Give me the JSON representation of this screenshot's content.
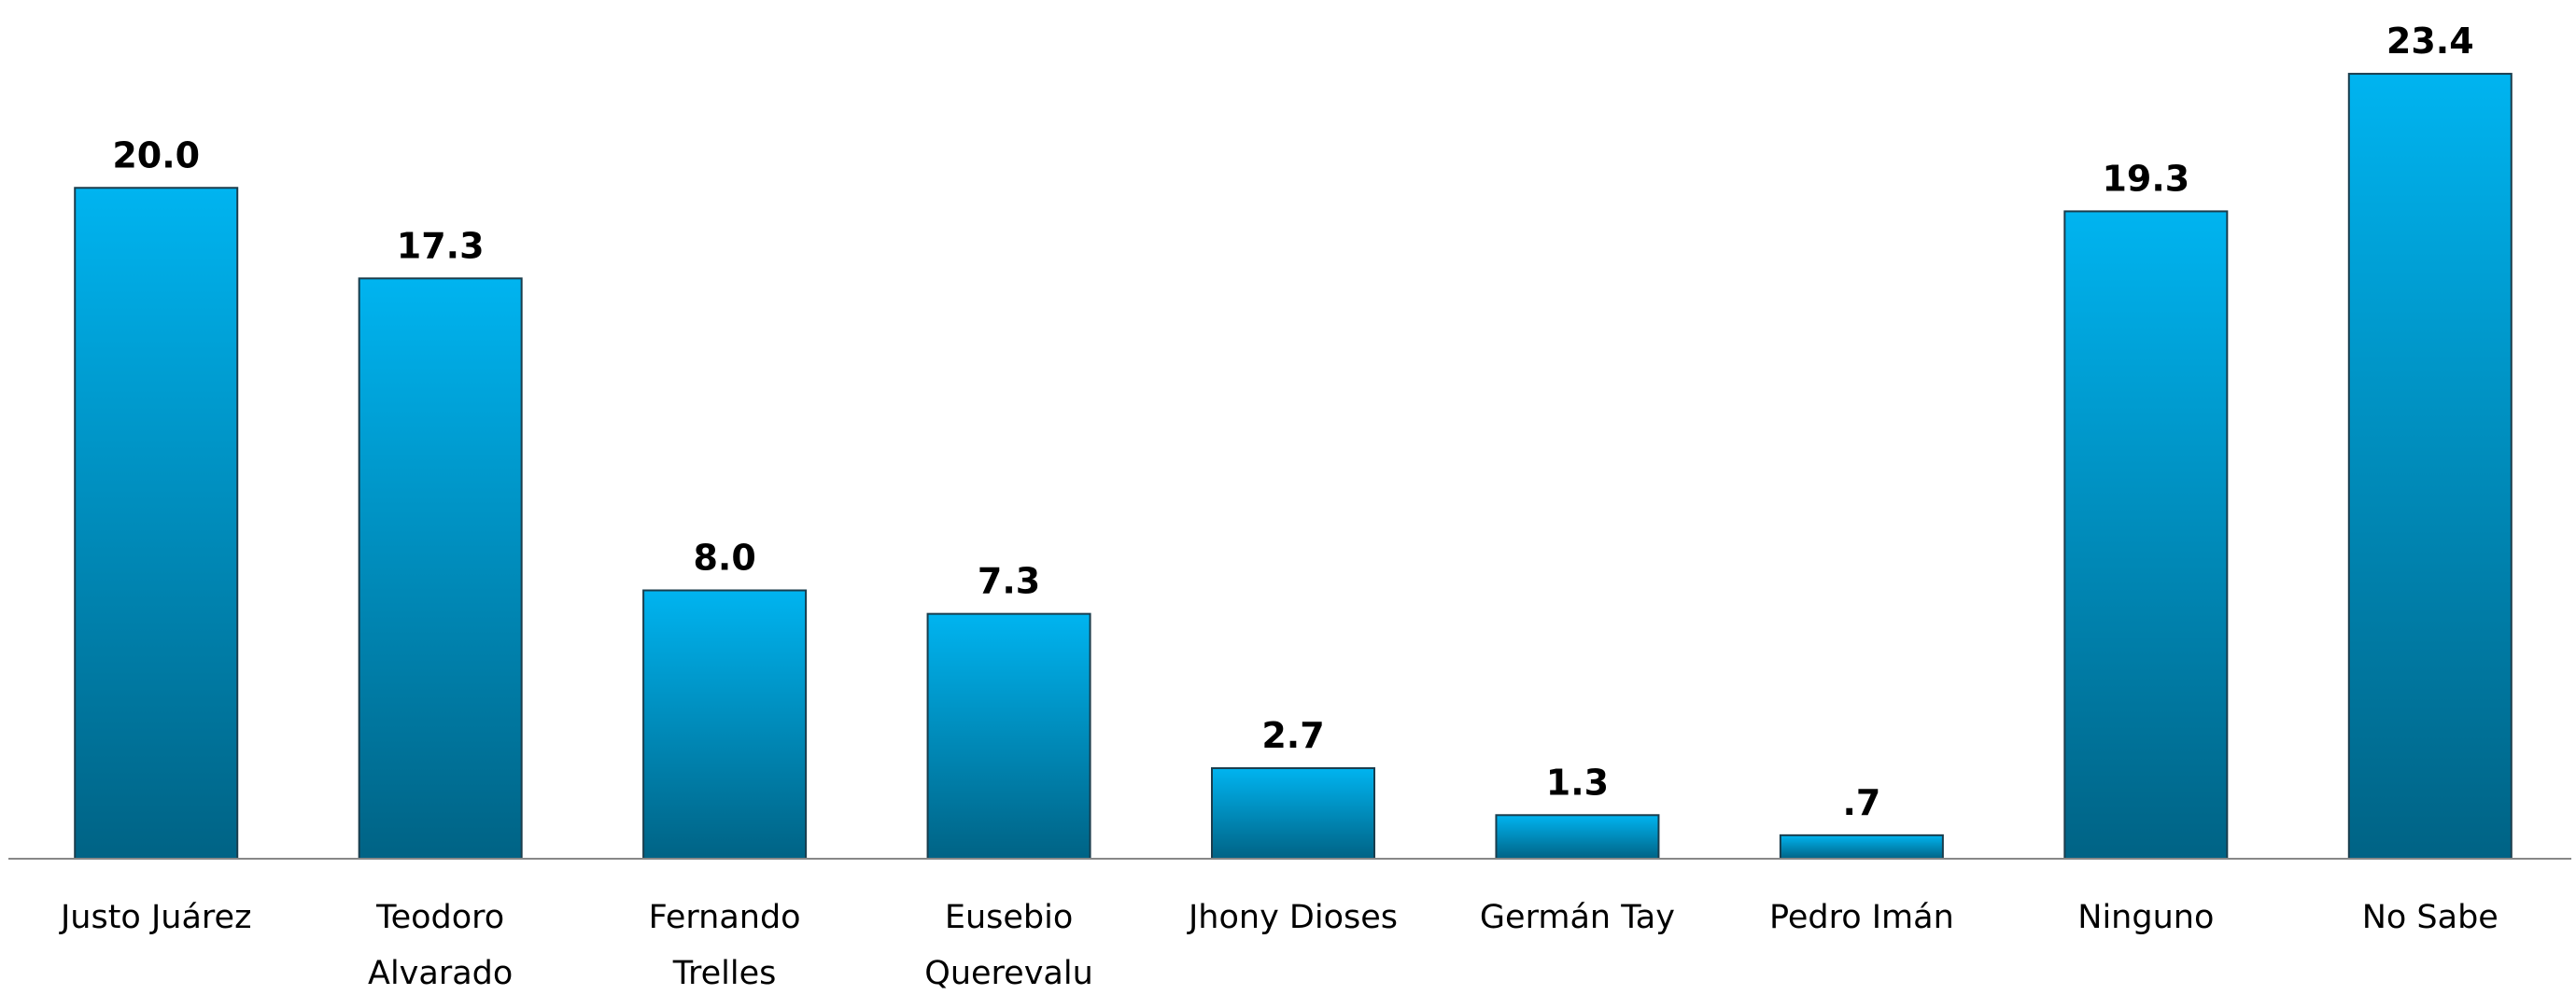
{
  "chart_data": {
    "type": "bar",
    "categories": [
      "Justo Juárez",
      "Teodoro\nAlvarado",
      "Fernando\nTrelles",
      "Eusebio\nQuerevalu",
      "Jhony Dioses",
      "Germán Tay",
      "Pedro Imán",
      "Ninguno",
      "No Sabe"
    ],
    "values": [
      20.0,
      17.3,
      8.0,
      7.3,
      2.7,
      1.3,
      0.7,
      19.3,
      23.4
    ],
    "value_labels": [
      "20.0",
      "17.3",
      "8.0",
      "7.3",
      "2.7",
      "1.3",
      ".7",
      "19.3",
      "23.4"
    ],
    "color": "#00b4f0",
    "ylim": [
      0,
      25.6
    ]
  }
}
